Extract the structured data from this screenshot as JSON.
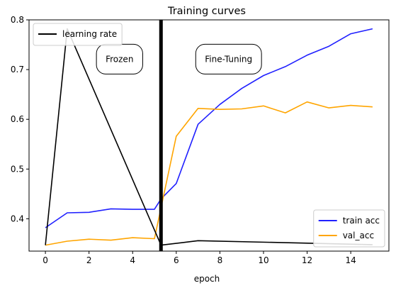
{
  "chart_data": {
    "type": "line",
    "title": "Training curves",
    "xlabel": "epoch",
    "ylabel": "",
    "xlim": [
      -0.75,
      15.75
    ],
    "ylim": [
      0.335,
      0.8
    ],
    "x_ticks": [
      0,
      2,
      4,
      6,
      8,
      10,
      12,
      14
    ],
    "y_ticks": [
      0.4,
      0.5,
      0.6,
      0.7,
      0.8
    ],
    "grid": false,
    "series": [
      {
        "name": "train acc",
        "color": "#2020ff",
        "x": [
          0,
          1,
          2,
          3,
          4,
          5,
          5.3,
          6,
          7,
          8,
          9,
          10,
          11,
          12,
          13,
          14,
          15
        ],
        "values": [
          0.382,
          0.412,
          0.413,
          0.42,
          0.419,
          0.419,
          0.44,
          0.471,
          0.59,
          0.63,
          0.662,
          0.688,
          0.706,
          0.729,
          0.747,
          0.772,
          0.782
        ]
      },
      {
        "name": "val_acc",
        "color": "#ffa500",
        "x": [
          0,
          1,
          2,
          3,
          4,
          5,
          6,
          7,
          8,
          9,
          10,
          11,
          12,
          13,
          14,
          15
        ],
        "values": [
          0.347,
          0.355,
          0.359,
          0.357,
          0.362,
          0.36,
          0.566,
          0.622,
          0.62,
          0.621,
          0.627,
          0.613,
          0.635,
          0.623,
          0.628,
          0.625
        ]
      },
      {
        "name": "learning rate",
        "color": "#000000",
        "x": [
          0,
          1,
          5.3,
          7,
          15
        ],
        "values": [
          0.347,
          0.782,
          0.347,
          0.356,
          0.348
        ]
      }
    ],
    "vertical_line": {
      "x": 5.3,
      "color": "#000000"
    },
    "annotations": [
      {
        "text": "Frozen",
        "x": 3.4,
        "y": 0.721
      },
      {
        "text": "Fine-Tuning",
        "x": 8.4,
        "y": 0.721
      }
    ],
    "legends": [
      {
        "placement": "upper-left",
        "entries": [
          "learning rate"
        ]
      },
      {
        "placement": "lower-right",
        "entries": [
          "train acc",
          "val_acc"
        ]
      }
    ]
  }
}
